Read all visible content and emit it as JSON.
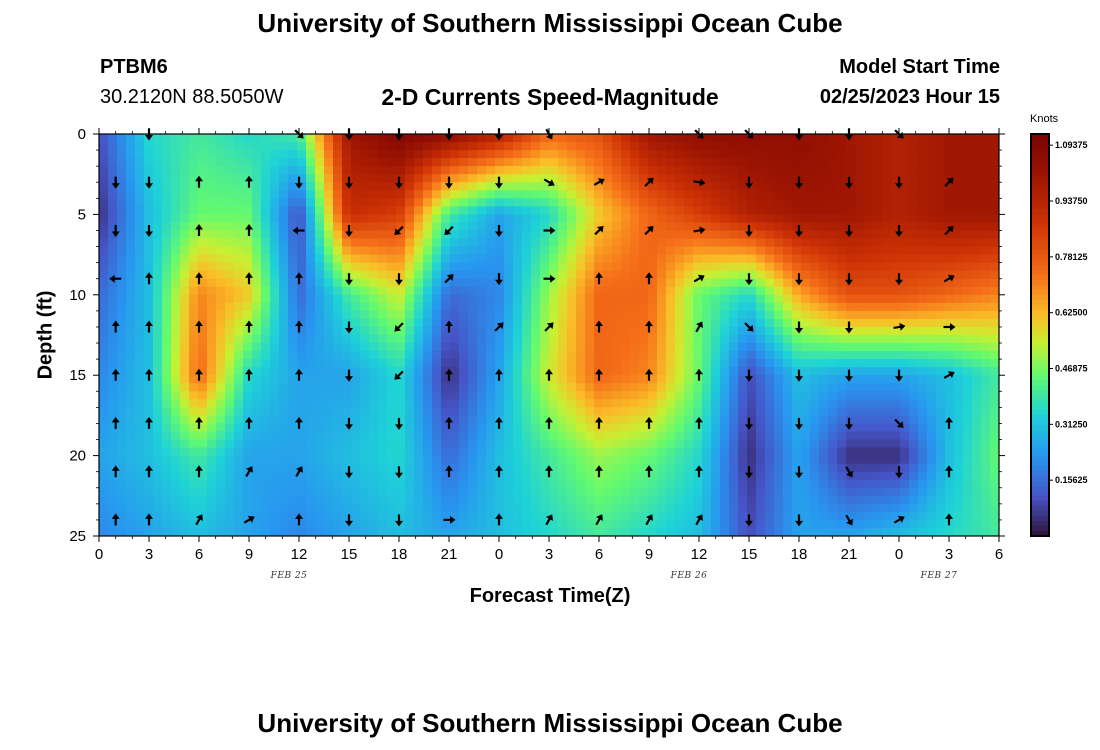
{
  "header": {
    "title": "University of Southern Mississippi Ocean Cube",
    "station": "PTBM6",
    "coordinates": "30.2120N  88.5050W",
    "subtitle": "2-D Currents Speed-Magnitude",
    "model_start_label": "Model Start Time",
    "model_start_value": "02/25/2023 Hour 15"
  },
  "footer": {
    "title": "University of Southern Mississippi Ocean Cube"
  },
  "chart_data": {
    "type": "heatmap",
    "xlabel": "Forecast Time(Z)",
    "ylabel": "Depth (ft)",
    "x_ticks": [
      "0",
      "3",
      "6",
      "9",
      "12",
      "15",
      "18",
      "21",
      "0",
      "3",
      "6",
      "9",
      "12",
      "15",
      "18",
      "21",
      "0",
      "3",
      "6"
    ],
    "x_index_range": [
      0,
      54
    ],
    "date_labels": [
      {
        "text": "FEB 25",
        "at_index": 12
      },
      {
        "text": "FEB 26",
        "at_index": 36
      },
      {
        "text": "FEB 27",
        "at_index": 51
      }
    ],
    "y_ticks": [
      0,
      5,
      10,
      15,
      20,
      25
    ],
    "ylim": [
      0,
      25
    ],
    "y_inverted": true,
    "colorbar": {
      "units": "Knots",
      "range": [
        0,
        1.125
      ],
      "tick_values": [
        1.09375,
        0.9375,
        0.78125,
        0.625,
        0.46875,
        0.3125,
        0.15625
      ],
      "tick_labels": [
        "1.09375",
        "0.93750",
        "0.78125",
        "0.62500",
        "0.46875",
        "0.31250",
        "0.15625"
      ]
    },
    "speed_grid": {
      "x_index": [
        0,
        3,
        6,
        9,
        12,
        15,
        18,
        21,
        24,
        27,
        30,
        33,
        36,
        39,
        42,
        45,
        48,
        51,
        54
      ],
      "depth_ft": [
        0,
        5,
        10,
        15,
        20,
        25
      ],
      "values": [
        [
          0.1,
          0.35,
          0.4,
          0.35,
          0.4,
          1.0,
          1.1,
          1.05,
          0.95,
          0.75,
          0.8,
          1.0,
          1.05,
          1.05,
          1.05,
          1.0,
          0.95,
          1.0,
          1.0
        ],
        [
          0.05,
          0.3,
          0.45,
          0.45,
          0.1,
          0.9,
          0.85,
          0.4,
          0.25,
          0.35,
          0.6,
          0.75,
          0.85,
          0.95,
          1.0,
          1.0,
          0.95,
          1.0,
          1.0
        ],
        [
          0.15,
          0.3,
          0.7,
          0.6,
          0.15,
          0.4,
          0.55,
          0.15,
          0.2,
          0.5,
          0.75,
          0.75,
          0.45,
          0.35,
          0.65,
          0.8,
          0.8,
          0.75,
          0.7
        ],
        [
          0.2,
          0.3,
          0.75,
          0.35,
          0.25,
          0.25,
          0.35,
          0.05,
          0.25,
          0.55,
          0.75,
          0.7,
          0.45,
          0.1,
          0.3,
          0.25,
          0.25,
          0.3,
          0.4
        ],
        [
          0.25,
          0.3,
          0.4,
          0.25,
          0.25,
          0.3,
          0.35,
          0.15,
          0.3,
          0.4,
          0.5,
          0.45,
          0.35,
          0.05,
          0.25,
          0.05,
          0.05,
          0.3,
          0.45
        ],
        [
          0.2,
          0.25,
          0.3,
          0.25,
          0.2,
          0.25,
          0.3,
          0.25,
          0.3,
          0.35,
          0.4,
          0.35,
          0.3,
          0.1,
          0.25,
          0.25,
          0.3,
          0.35,
          0.4
        ]
      ]
    },
    "vectors": {
      "x_index": [
        1,
        3,
        6,
        9,
        12,
        15,
        18,
        21,
        24,
        27,
        30,
        33,
        36,
        39,
        42,
        45,
        48,
        51,
        54
      ],
      "depth_ft": [
        0,
        3,
        6,
        9,
        12,
        15,
        18,
        21,
        24
      ],
      "directions_deg": [
        [
          null,
          180,
          null,
          null,
          135,
          180,
          180,
          180,
          180,
          150,
          null,
          null,
          135,
          135,
          180,
          180,
          135,
          null,
          null
        ],
        [
          180,
          180,
          0,
          0,
          180,
          180,
          180,
          180,
          180,
          120,
          60,
          45,
          100,
          180,
          180,
          180,
          180,
          45,
          null
        ],
        [
          180,
          180,
          0,
          0,
          270,
          180,
          225,
          225,
          180,
          90,
          45,
          45,
          80,
          180,
          180,
          180,
          180,
          45,
          null
        ],
        [
          270,
          0,
          0,
          0,
          0,
          180,
          180,
          45,
          180,
          90,
          0,
          0,
          60,
          180,
          180,
          180,
          180,
          60,
          null
        ],
        [
          0,
          0,
          0,
          0,
          0,
          180,
          225,
          0,
          45,
          45,
          0,
          0,
          30,
          135,
          180,
          180,
          80,
          90,
          null
        ],
        [
          0,
          0,
          0,
          0,
          0,
          180,
          225,
          0,
          0,
          0,
          0,
          0,
          0,
          180,
          180,
          180,
          180,
          60,
          null
        ],
        [
          0,
          0,
          0,
          0,
          0,
          180,
          180,
          0,
          0,
          0,
          0,
          0,
          0,
          180,
          180,
          180,
          135,
          0,
          null
        ],
        [
          0,
          0,
          0,
          30,
          30,
          180,
          180,
          0,
          0,
          0,
          0,
          0,
          0,
          180,
          180,
          150,
          180,
          0,
          null
        ],
        [
          0,
          0,
          30,
          60,
          0,
          180,
          180,
          90,
          0,
          30,
          30,
          30,
          30,
          180,
          180,
          150,
          60,
          0,
          null
        ]
      ]
    }
  }
}
